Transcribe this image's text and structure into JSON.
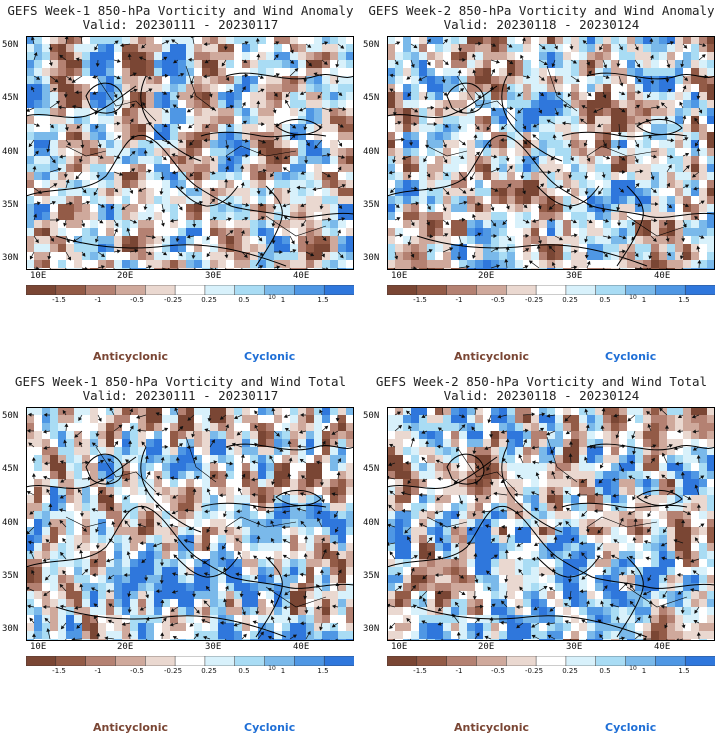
{
  "panels": [
    {
      "id": "p0",
      "title": "GEFS Week-1 850-hPa Vorticity and Wind Anomaly",
      "valid": "Valid: 20230111 - 20230117"
    },
    {
      "id": "p1",
      "title": "GEFS Week-2 850-hPa Vorticity and Wind Anomaly",
      "valid": "Valid: 20230118 - 20230124"
    },
    {
      "id": "p2",
      "title": "GEFS Week-1 850-hPa Vorticity and Wind Total",
      "valid": "Valid: 20230111 - 20230117"
    },
    {
      "id": "p3",
      "title": "GEFS Week-2 850-hPa Vorticity and Wind Total",
      "valid": "Valid: 20230118 - 20230124"
    }
  ],
  "lat_labels": [
    "50N",
    "45N",
    "40N",
    "35N",
    "30N"
  ],
  "lon_labels": [
    "10E",
    "20E",
    "30E",
    "40E"
  ],
  "colorbar": {
    "ticks": [
      "-1.5",
      "-1",
      "-0.5",
      "-0.25",
      "0.25",
      "0.5",
      "1",
      "1.5"
    ],
    "scale_label": "10",
    "colors": [
      "#7a4634",
      "#935b47",
      "#b48172",
      "#cfa99c",
      "#ead8d0",
      "#ffffff",
      "#d8f1fb",
      "#a9dcf4",
      "#7ab9ea",
      "#4f97e4",
      "#2f77dc"
    ]
  },
  "legend": {
    "anticyclonic": "Anticyclonic",
    "cyclonic": "Cyclonic"
  },
  "colors": {
    "anticyclonic": "#7a4634",
    "cyclonic": "#1f6fd6",
    "neutral": "#ffffff"
  }
}
